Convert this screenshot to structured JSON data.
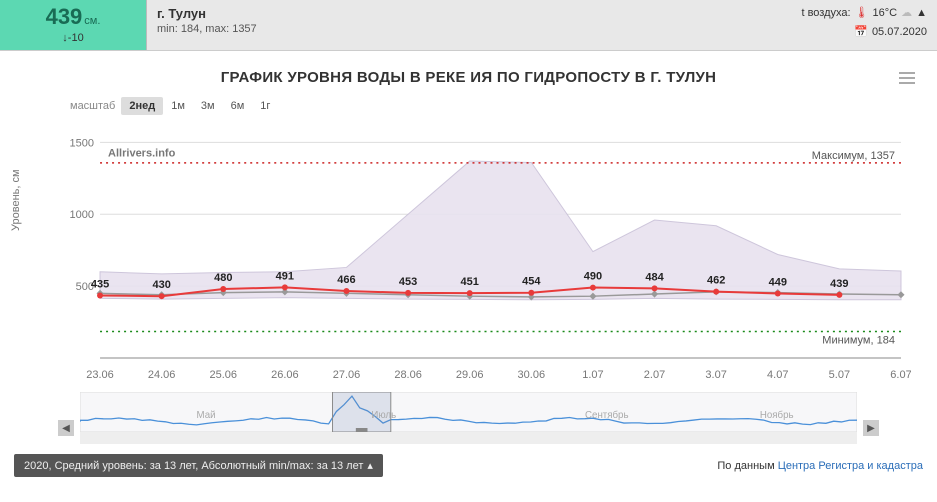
{
  "header": {
    "level_value": "439",
    "level_unit": "см.",
    "level_delta": "↓-10",
    "city": "г. Тулун",
    "min_label": "min: 184, max: 1357",
    "temp_label": "t воздуха:",
    "temp_value": "16°C",
    "date": "05.07.2020"
  },
  "chart": {
    "title": "ГРАФИК УРОВНЯ ВОДЫ В РЕКЕ ИЯ ПО ГИДРОПОСТУ В Г. ТУЛУН",
    "scale_label": "масштаб",
    "scale_options": [
      "2нед",
      "1м",
      "3м",
      "6м",
      "1г"
    ],
    "scale_active": 0,
    "ylabel": "Уровень, см",
    "watermark": "Allrivers.info",
    "max_label": "Максимум, 1357",
    "min_label": "Минимум, 184",
    "ylim": [
      0,
      1600
    ],
    "yticks": [
      500,
      1000,
      1500
    ],
    "x_categories": [
      "23.06",
      "24.06",
      "25.06",
      "26.06",
      "27.06",
      "28.06",
      "29.06",
      "30.06",
      "1.07",
      "2.07",
      "3.07",
      "4.07",
      "5.07",
      "6.07"
    ],
    "series": {
      "current": {
        "color": "#e83a3a",
        "values": [
          435,
          430,
          480,
          491,
          466,
          453,
          451,
          454,
          490,
          484,
          462,
          449,
          439,
          null
        ],
        "line_width": 2,
        "marker": "circle"
      },
      "avg": {
        "color": "#999999",
        "values": [
          450,
          440,
          455,
          460,
          450,
          440,
          430,
          425,
          430,
          445,
          460,
          455,
          445,
          440
        ],
        "line_width": 1.5,
        "marker": "diamond"
      },
      "range": {
        "fill": "#e8e2ef",
        "stroke": "#c9c0d8",
        "upper": [
          600,
          585,
          595,
          600,
          630,
          1000,
          1370,
          1360,
          740,
          960,
          920,
          720,
          620,
          605
        ],
        "lower": [
          415,
          410,
          415,
          420,
          415,
          410,
          408,
          405,
          408,
          415,
          410,
          408,
          405,
          405
        ]
      },
      "max_ref": {
        "color": "#cc2222",
        "value": 1357,
        "dash": "2,4"
      },
      "min_ref": {
        "color": "#1a8a1a",
        "value": 184,
        "dash": "2,4"
      }
    },
    "background": "#ffffff",
    "grid_color": "#dddddd"
  },
  "navigator": {
    "months": [
      "Май",
      "Июль",
      "Сентябрь",
      "Ноябрь"
    ],
    "line_color": "#4a90d9",
    "mask_color": "rgba(120,140,180,0.2)",
    "handle_color": "#888"
  },
  "footer": {
    "left": "2020, Средний уровень: за 13 лет, Абсолютный min/max: за 13 лет",
    "right_prefix": "По данным ",
    "right_link": "Центра Регистра и кадастра"
  }
}
